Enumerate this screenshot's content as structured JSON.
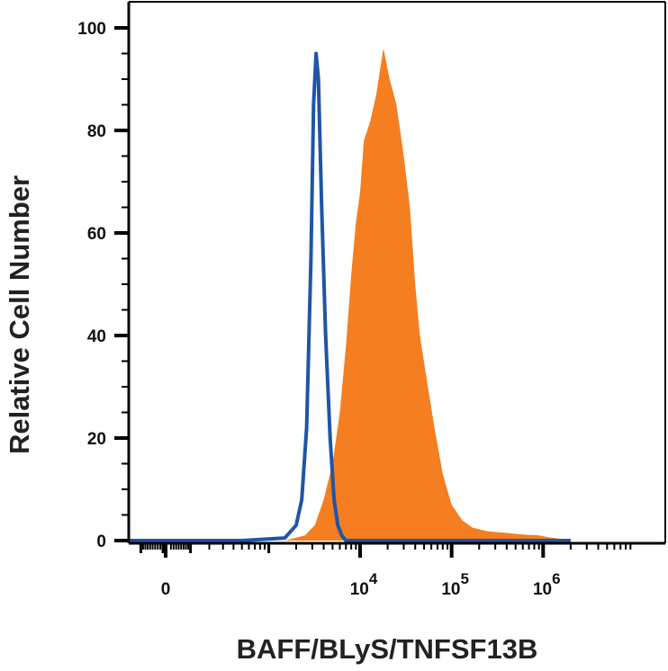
{
  "chart_data": {
    "type": "area",
    "title": "",
    "xlabel": "BAFF/BLyS/TNFSF13B",
    "ylabel": "Relative Cell Number",
    "x_scale": "biexponential",
    "x_ticks": [
      {
        "value": 0,
        "base": "0",
        "exp": ""
      },
      {
        "value": 10000,
        "base": "10",
        "exp": "4"
      },
      {
        "value": 100000,
        "base": "10",
        "exp": "5"
      },
      {
        "value": 1000000,
        "base": "10",
        "exp": "6"
      }
    ],
    "ylim": [
      0,
      100
    ],
    "y_ticks": [
      "0",
      "20",
      "40",
      "60",
      "80",
      "100"
    ],
    "grid": false,
    "legend": "none",
    "colors": {
      "filled": "#F47E20",
      "outline": "#1F55A6"
    },
    "series": [
      {
        "style": "outline",
        "points": [
          [
            -1000,
            0
          ],
          [
            500,
            0
          ],
          [
            1500,
            0.5
          ],
          [
            2000,
            3
          ],
          [
            2300,
            8
          ],
          [
            2600,
            22
          ],
          [
            2900,
            55
          ],
          [
            3100,
            85
          ],
          [
            3300,
            95
          ],
          [
            3500,
            90
          ],
          [
            3800,
            65
          ],
          [
            4200,
            40
          ],
          [
            4700,
            20
          ],
          [
            5200,
            8
          ],
          [
            5700,
            3
          ],
          [
            6300,
            1
          ],
          [
            7000,
            0
          ],
          [
            100000,
            0
          ],
          [
            2000000,
            0
          ]
        ]
      },
      {
        "style": "filled",
        "points": [
          [
            1500,
            0
          ],
          [
            2500,
            1
          ],
          [
            3200,
            3
          ],
          [
            4000,
            8
          ],
          [
            5000,
            15
          ],
          [
            6000,
            25
          ],
          [
            7000,
            38
          ],
          [
            8000,
            52
          ],
          [
            9000,
            62
          ],
          [
            10000,
            68
          ],
          [
            11000,
            78
          ],
          [
            13000,
            82
          ],
          [
            15000,
            87
          ],
          [
            18000,
            96
          ],
          [
            21000,
            90
          ],
          [
            25000,
            85
          ],
          [
            30000,
            75
          ],
          [
            35000,
            65
          ],
          [
            40000,
            50
          ],
          [
            45000,
            40
          ],
          [
            55000,
            30
          ],
          [
            65000,
            22
          ],
          [
            80000,
            13
          ],
          [
            100000,
            7
          ],
          [
            130000,
            4
          ],
          [
            170000,
            2.5
          ],
          [
            250000,
            1.8
          ],
          [
            400000,
            1.5
          ],
          [
            600000,
            1.2
          ],
          [
            900000,
            1
          ],
          [
            1200000,
            0.6
          ],
          [
            1600000,
            0.3
          ],
          [
            2000000,
            0
          ]
        ]
      }
    ]
  }
}
